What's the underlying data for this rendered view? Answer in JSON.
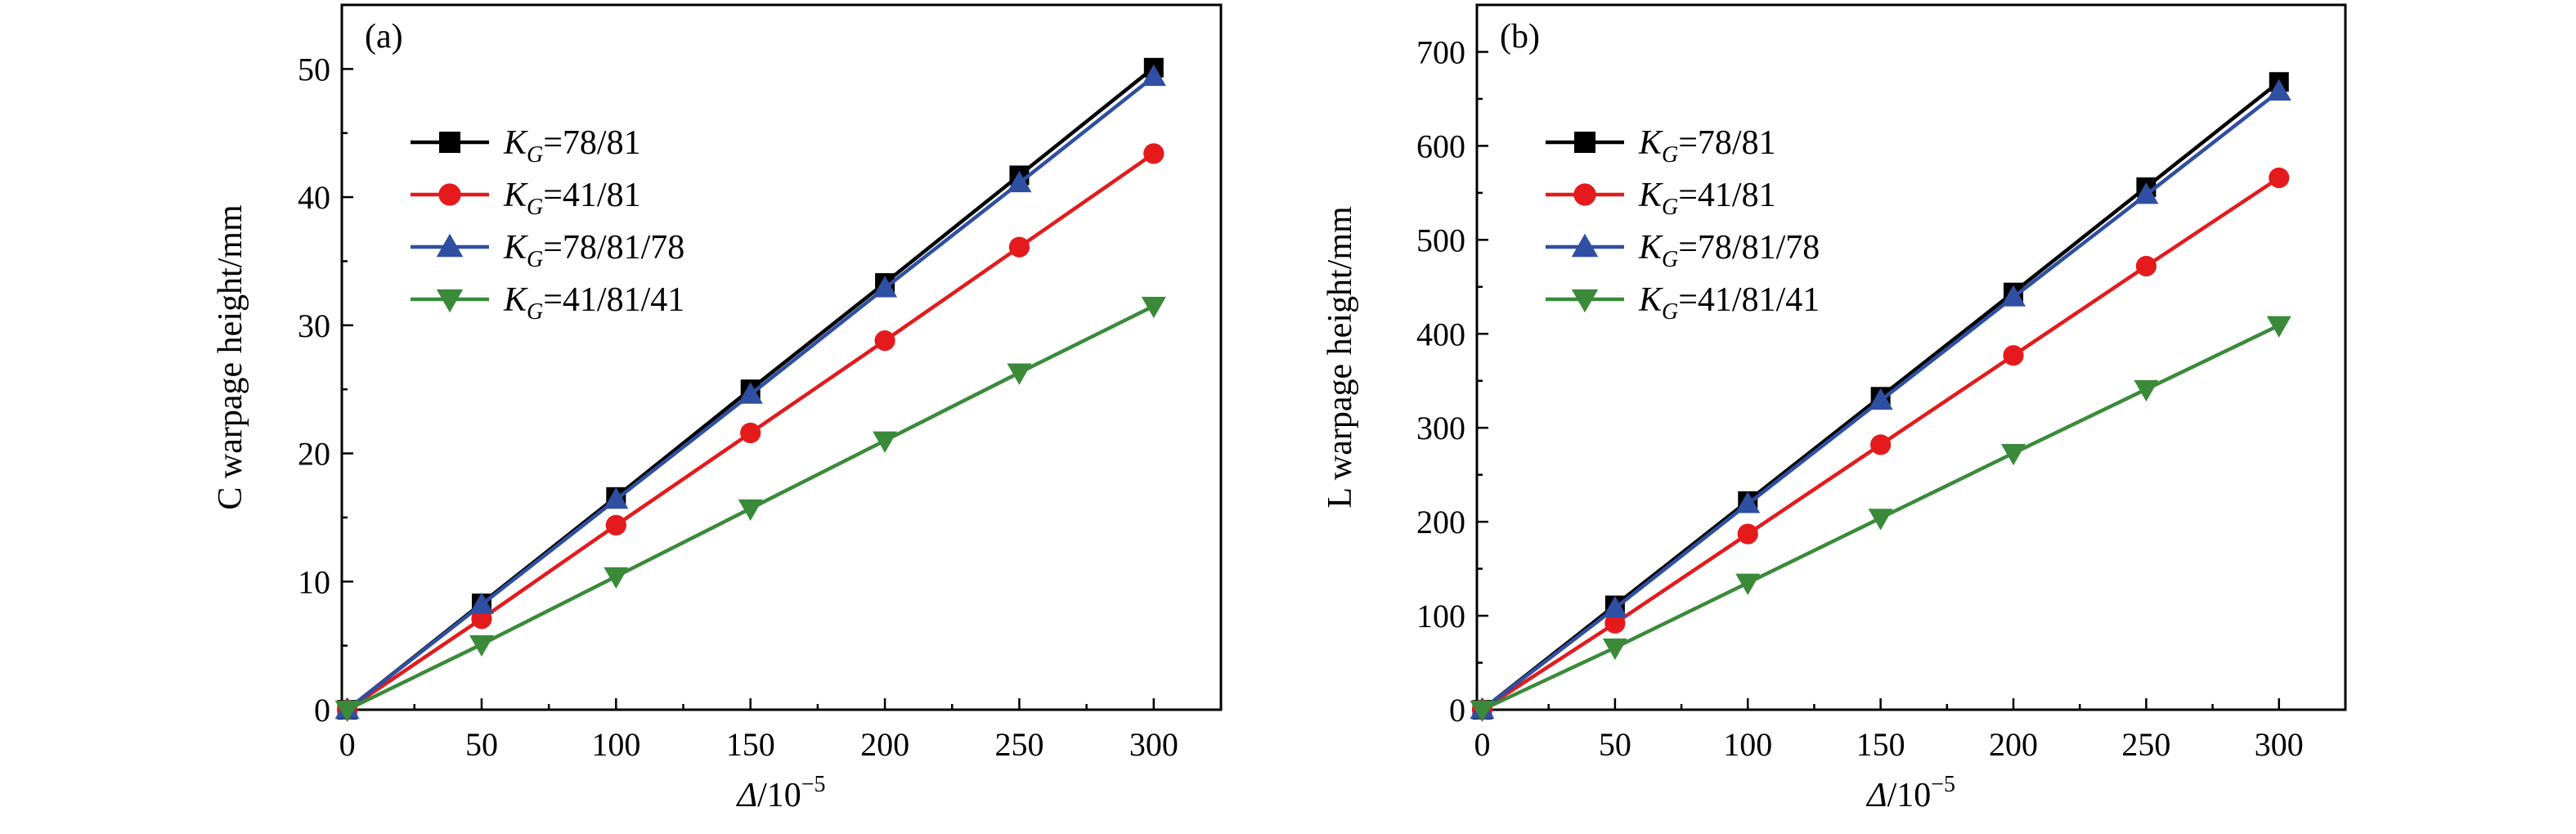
{
  "chart_data": [
    {
      "type": "line",
      "panel_label": "(a)",
      "xlabel_italic": "Δ",
      "xlabel_rest": "/10",
      "xlabel_sup": "−5",
      "ylabel": "C warpage height/mm",
      "xlim": [
        -2,
        325
      ],
      "ylim": [
        0,
        55
      ],
      "xticks": [
        0,
        50,
        100,
        150,
        200,
        250,
        300
      ],
      "yticks": [
        0,
        10,
        20,
        30,
        40,
        50
      ],
      "legend_position": "upper-left",
      "x": [
        0,
        50,
        100,
        150,
        200,
        250,
        300
      ],
      "series": [
        {
          "label_var": "K",
          "label_sub": "G",
          "label_val": "=78/81",
          "color": "#000000",
          "marker": "square",
          "values": [
            0,
            8.3,
            16.6,
            25.0,
            33.3,
            41.7,
            50.1
          ]
        },
        {
          "label_var": "K",
          "label_sub": "G",
          "label_val": "=41/81",
          "color": "#e41a1c",
          "marker": "circle",
          "values": [
            0,
            7.1,
            14.4,
            21.6,
            28.8,
            36.1,
            43.4
          ]
        },
        {
          "label_var": "K",
          "label_sub": "G",
          "label_val": "=78/81/78",
          "color": "#2f4fa2",
          "marker": "triangle-up",
          "values": [
            0,
            8.2,
            16.4,
            24.6,
            32.9,
            41.1,
            49.4
          ]
        },
        {
          "label_var": "K",
          "label_sub": "G",
          "label_val": "=41/81/41",
          "color": "#3a8a3a",
          "marker": "triangle-down",
          "values": [
            0,
            5.1,
            10.4,
            15.7,
            21.0,
            26.3,
            31.5
          ]
        }
      ]
    },
    {
      "type": "line",
      "panel_label": "(b)",
      "xlabel_italic": "Δ",
      "xlabel_rest": "/10",
      "xlabel_sup": "−5",
      "ylabel": "L warpage height/mm",
      "xlim": [
        -2,
        325
      ],
      "ylim": [
        0,
        750
      ],
      "xticks": [
        0,
        50,
        100,
        150,
        200,
        250,
        300
      ],
      "yticks": [
        0,
        100,
        200,
        300,
        400,
        500,
        600,
        700
      ],
      "legend_position": "upper-left",
      "x": [
        0,
        50,
        100,
        150,
        200,
        250,
        300
      ],
      "series": [
        {
          "label_var": "K",
          "label_sub": "G",
          "label_val": "=78/81",
          "color": "#000000",
          "marker": "square",
          "values": [
            0,
            111,
            222,
            333,
            444,
            556,
            668
          ]
        },
        {
          "label_var": "K",
          "label_sub": "G",
          "label_val": "=41/81",
          "color": "#e41a1c",
          "marker": "circle",
          "values": [
            0,
            92,
            187,
            282,
            377,
            472,
            566
          ]
        },
        {
          "label_var": "K",
          "label_sub": "G",
          "label_val": "=78/81/78",
          "color": "#2f4fa2",
          "marker": "triangle-up",
          "values": [
            0,
            108,
            219,
            329,
            439,
            548,
            658
          ]
        },
        {
          "label_var": "K",
          "label_sub": "G",
          "label_val": "=41/81/41",
          "color": "#3a8a3a",
          "marker": "triangle-down",
          "values": [
            0,
            66,
            135,
            204,
            273,
            341,
            409
          ]
        }
      ]
    }
  ]
}
